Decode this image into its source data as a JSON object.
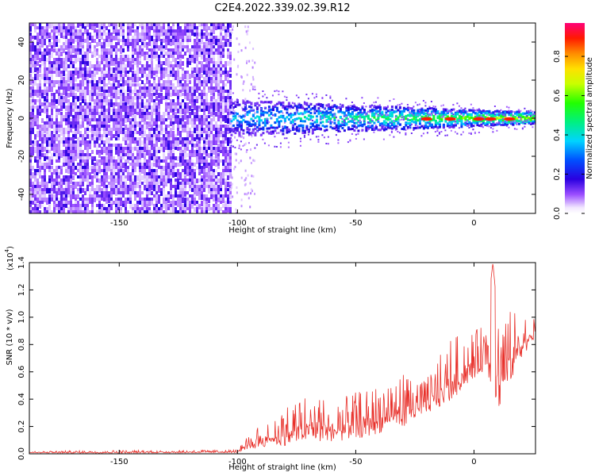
{
  "title": "C2E4.2022.339.02.39.R12",
  "chart_data": [
    {
      "type": "heatmap",
      "xlabel": "Height of straight line (km)",
      "ylabel": "Frequency (Hz)",
      "xlim": [
        -188,
        26
      ],
      "ylim": [
        -50,
        50
      ],
      "xticks": [
        -150,
        -100,
        -50,
        0
      ],
      "xtick_labels": [
        "-150",
        "-100",
        "-50",
        "0"
      ],
      "yticks": [
        -40,
        -20,
        0,
        20,
        40
      ],
      "ytick_labels": [
        "-40",
        "-20",
        "0",
        "20",
        "40"
      ],
      "colorbar": {
        "label": "Normalized spectral amplitude",
        "range": [
          0,
          0.97
        ],
        "ticks": [
          0.0,
          0.2,
          0.4,
          0.6,
          0.8
        ],
        "tick_labels": [
          "0.0",
          "0.2",
          "0.4",
          "0.6",
          "0.8"
        ],
        "colormap": "rainbow (white-violet-blue-cyan-green-yellow-orange-red-magenta)"
      },
      "regions": [
        {
          "x_range": [
            -188,
            -103
          ],
          "freq_range": [
            -50,
            50
          ],
          "description_level": 0.1
        },
        {
          "x_range": [
            -103,
            26
          ],
          "freq_center": 0,
          "band_halfwidth_hz": 5,
          "level_start": 0.35,
          "level_end": 0.95
        }
      ],
      "hot_spots_x": [
        -20,
        -10,
        2,
        7,
        15
      ]
    },
    {
      "type": "line",
      "xlabel": "Height of straight line (km)",
      "ylabel": "SNR (10 * v/v)",
      "multiplier_label": "(x10^4)",
      "multiplier_base": "(x10",
      "multiplier_exp": "4",
      "xlim": [
        -188,
        26
      ],
      "ylim": [
        0,
        1.4
      ],
      "xticks": [
        -150,
        -100,
        -50,
        0
      ],
      "xtick_labels": [
        "-150",
        "-100",
        "-50",
        "0"
      ],
      "yticks": [
        0.0,
        0.2,
        0.4,
        0.6,
        0.8,
        1.0,
        1.2,
        1.4
      ],
      "ytick_labels": [
        "0.0",
        "0.2",
        "0.4",
        "0.6",
        "0.8",
        "1.0",
        "1.2",
        "1.4"
      ],
      "color": "#e8302a",
      "envelope": {
        "x": [
          -188,
          -150,
          -100,
          -95,
          -90,
          -80,
          -70,
          -60,
          -50,
          -40,
          -30,
          -20,
          -10,
          0,
          5,
          8,
          10,
          15,
          20,
          26
        ],
        "base": [
          0.005,
          0.005,
          0.008,
          0.03,
          0.05,
          0.06,
          0.08,
          0.09,
          0.1,
          0.15,
          0.2,
          0.28,
          0.38,
          0.55,
          0.62,
          0.45,
          0.3,
          0.5,
          0.7,
          0.85
        ],
        "peak": [
          0.02,
          0.025,
          0.03,
          0.15,
          0.22,
          0.35,
          0.45,
          0.38,
          0.45,
          0.5,
          0.6,
          0.55,
          0.85,
          0.9,
          0.95,
          1.4,
          1.0,
          1.05,
          1.02,
          1.0
        ]
      }
    }
  ]
}
